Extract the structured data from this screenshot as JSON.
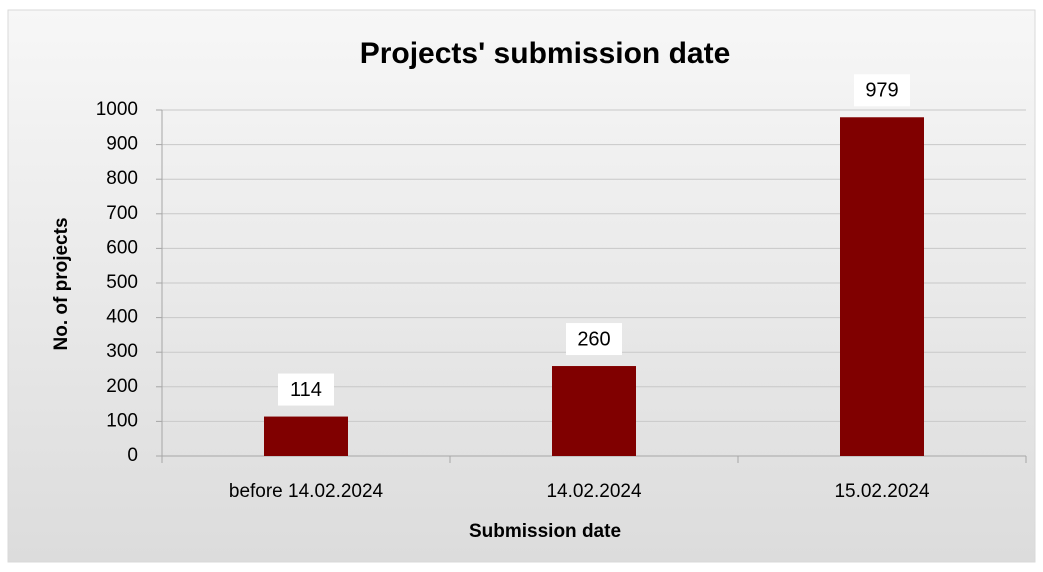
{
  "chart_data": {
    "type": "bar",
    "title": "Projects' submission date",
    "x_label": "Submission date",
    "y_label": "No. of projects",
    "categories": [
      "before 14.02.2024",
      "14.02.2024",
      "15.02.2024"
    ],
    "values": [
      114,
      260,
      979
    ],
    "color": "#800000",
    "ylim": [
      0,
      1000
    ],
    "yticks": [
      0,
      100,
      200,
      300,
      400,
      500,
      600,
      700,
      800,
      900,
      1000
    ],
    "grid": true,
    "data_labels": true
  }
}
